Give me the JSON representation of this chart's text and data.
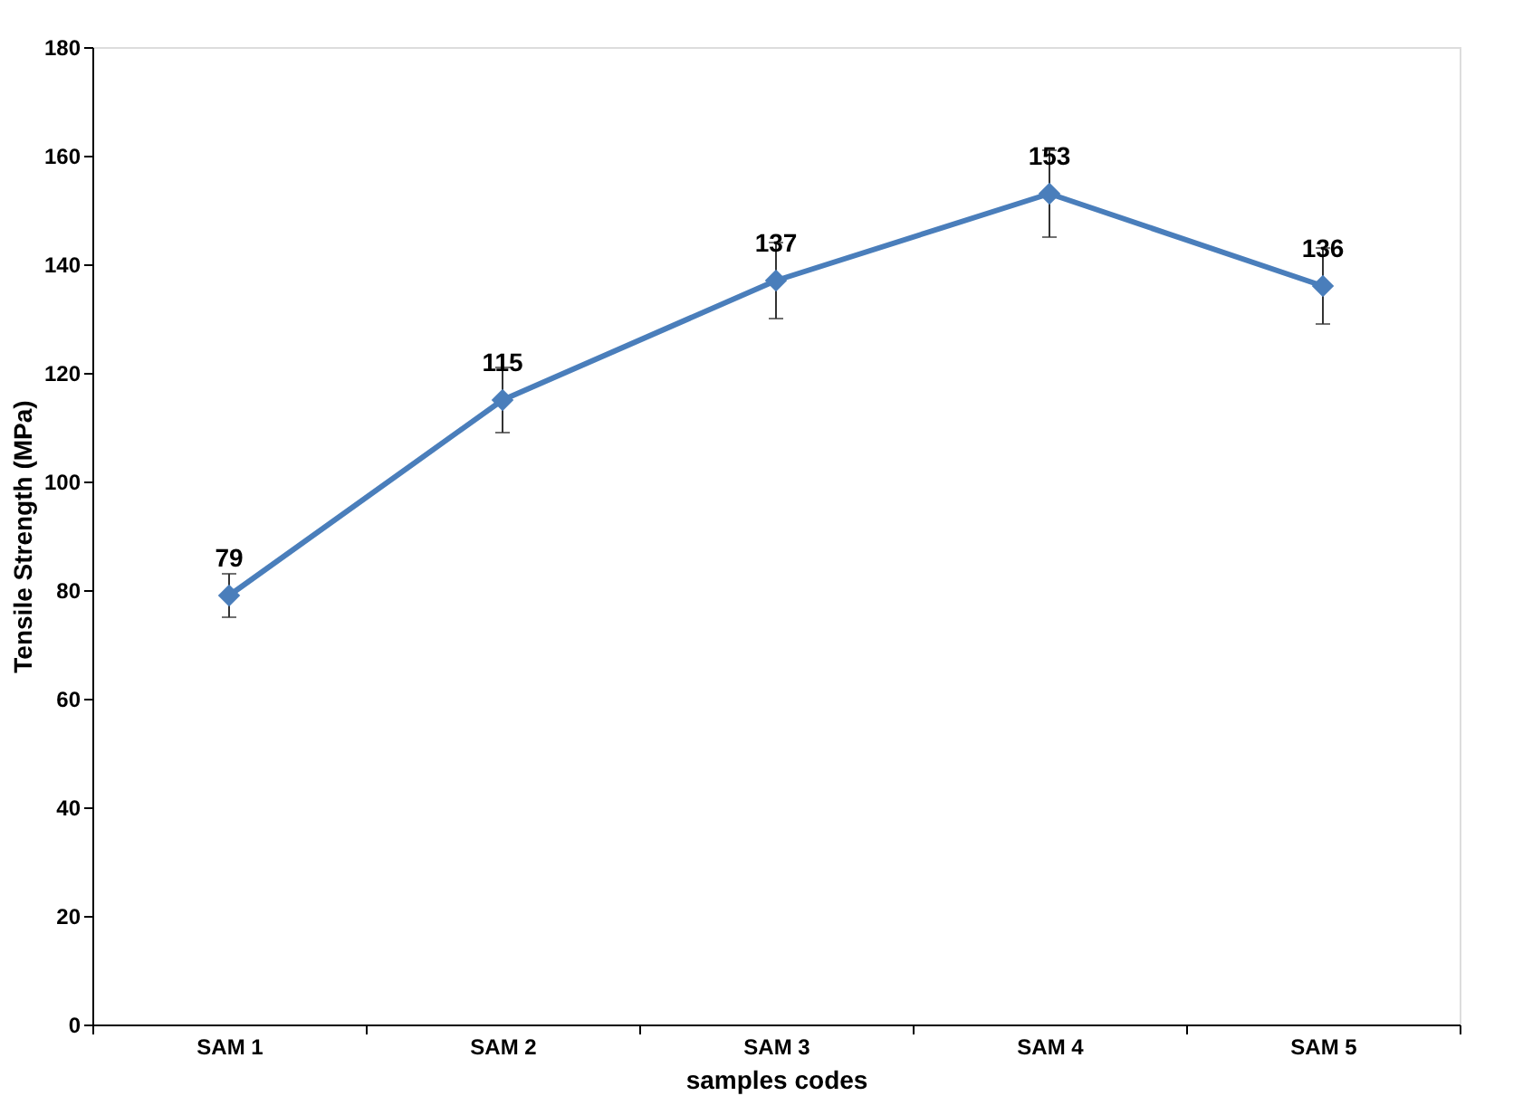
{
  "chart_data": {
    "type": "line",
    "xlabel": "samples codes",
    "ylabel": "Tensile Strength (MPa)",
    "categories": [
      "SAM 1",
      "SAM 2",
      "SAM 3",
      "SAM 4",
      "SAM 5"
    ],
    "series": [
      {
        "color": "#4a7ebb",
        "values": [
          79,
          115,
          137,
          153,
          136
        ],
        "errors": [
          4,
          6,
          7,
          8,
          7
        ]
      }
    ],
    "ylim": [
      0,
      180
    ],
    "yticks": [
      0,
      20,
      40,
      60,
      80,
      100,
      120,
      140,
      160,
      180
    ],
    "grid": false,
    "legend": false,
    "marker": "diamond",
    "line_style": "solid",
    "data_labels": true
  }
}
